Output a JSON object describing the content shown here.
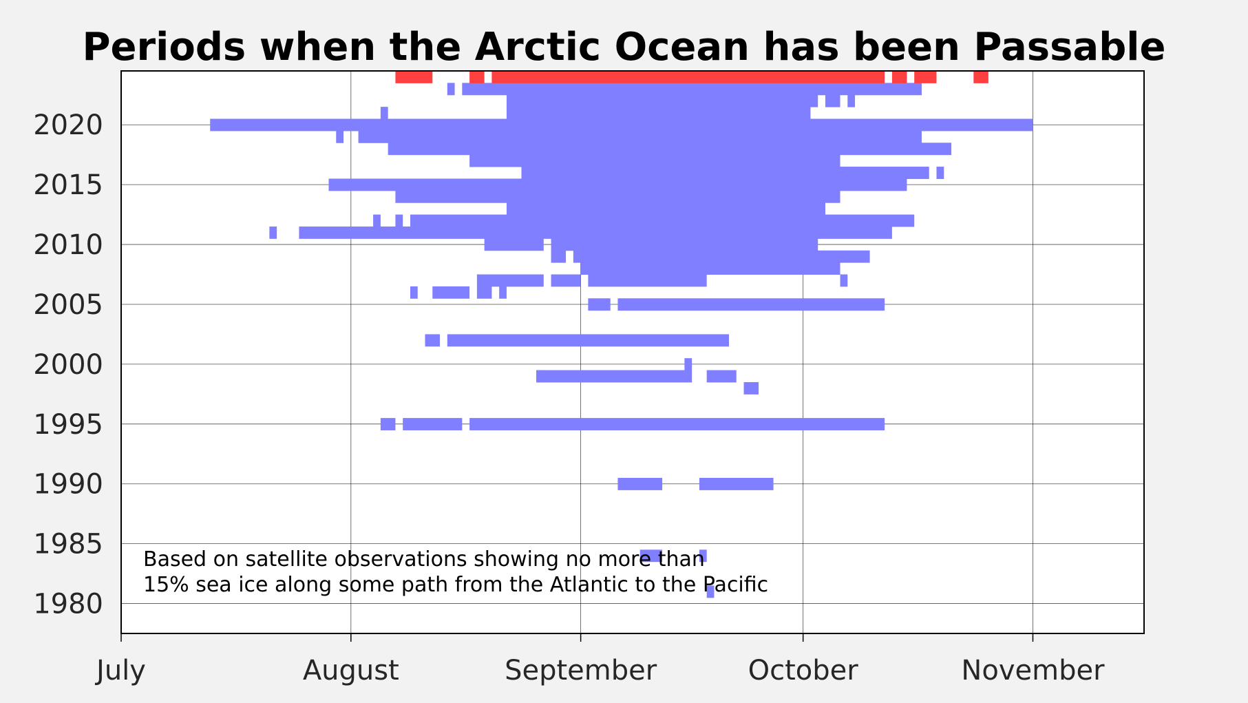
{
  "chart_data": {
    "type": "bar",
    "title": "Periods when the Arctic Ocean has been Passable",
    "xlabel": "",
    "ylabel": "",
    "x_unit": "day of year (Jul 1 = 0)",
    "x_tick_labels": [
      "July",
      "August",
      "September",
      "October",
      "November"
    ],
    "x_tick_values": [
      0,
      31,
      62,
      92,
      123
    ],
    "xlim": [
      0,
      138
    ],
    "ylim": [
      1977.5,
      2024.5
    ],
    "y_ticks": [
      1980,
      1985,
      1990,
      1995,
      2000,
      2005,
      2010,
      2015,
      2020
    ],
    "grid": true,
    "annotation": [
      "Based on satellite observations showing no more than",
      "15% sea ice along some path from the Atlantic to the Pacific"
    ],
    "colors": {
      "passable": "#7f7fff",
      "current_year": "#ff4040",
      "axis": "#000000",
      "grid": "#000000"
    },
    "series": [
      {
        "year": 1981,
        "highlight": false,
        "intervals": [
          [
            79,
            80
          ]
        ]
      },
      {
        "year": 1984,
        "highlight": false,
        "intervals": [
          [
            70,
            73
          ],
          [
            78,
            79
          ]
        ]
      },
      {
        "year": 1990,
        "highlight": false,
        "intervals": [
          [
            67,
            73
          ],
          [
            78,
            88
          ]
        ]
      },
      {
        "year": 1995,
        "highlight": false,
        "intervals": [
          [
            35,
            37
          ],
          [
            38,
            46
          ],
          [
            47,
            103
          ]
        ]
      },
      {
        "year": 1998,
        "highlight": false,
        "intervals": [
          [
            84,
            86
          ]
        ]
      },
      {
        "year": 1999,
        "highlight": false,
        "intervals": [
          [
            56,
            57
          ],
          [
            56,
            77
          ],
          [
            79,
            83
          ]
        ]
      },
      {
        "year": 2000,
        "highlight": false,
        "intervals": [
          [
            76,
            77
          ]
        ]
      },
      {
        "year": 2002,
        "highlight": false,
        "intervals": [
          [
            41,
            43
          ],
          [
            44,
            82
          ]
        ]
      },
      {
        "year": 2005,
        "highlight": false,
        "intervals": [
          [
            63,
            66
          ],
          [
            67,
            103
          ]
        ]
      },
      {
        "year": 2006,
        "highlight": false,
        "intervals": [
          [
            39,
            40
          ],
          [
            42,
            47
          ],
          [
            48,
            50
          ],
          [
            51,
            52
          ]
        ]
      },
      {
        "year": 2007,
        "highlight": false,
        "intervals": [
          [
            48,
            57
          ],
          [
            58,
            62
          ],
          [
            63,
            79
          ],
          [
            97,
            98
          ]
        ]
      },
      {
        "year": 2008,
        "highlight": false,
        "intervals": [
          [
            62,
            97
          ]
        ]
      },
      {
        "year": 2009,
        "highlight": false,
        "intervals": [
          [
            58,
            60
          ],
          [
            61,
            101
          ]
        ]
      },
      {
        "year": 2010,
        "highlight": false,
        "intervals": [
          [
            49,
            57
          ],
          [
            58,
            94
          ]
        ]
      },
      {
        "year": 2011,
        "highlight": false,
        "intervals": [
          [
            20,
            21
          ],
          [
            24,
            104
          ]
        ]
      },
      {
        "year": 2012,
        "highlight": false,
        "intervals": [
          [
            34,
            35
          ],
          [
            37,
            38
          ],
          [
            39,
            107
          ]
        ]
      },
      {
        "year": 2013,
        "highlight": false,
        "intervals": [
          [
            52,
            95
          ]
        ]
      },
      {
        "year": 2014,
        "highlight": false,
        "intervals": [
          [
            37,
            97
          ]
        ]
      },
      {
        "year": 2015,
        "highlight": false,
        "intervals": [
          [
            28,
            106
          ]
        ]
      },
      {
        "year": 2016,
        "highlight": false,
        "intervals": [
          [
            54,
            109
          ],
          [
            110,
            111
          ]
        ]
      },
      {
        "year": 2017,
        "highlight": false,
        "intervals": [
          [
            47,
            97
          ]
        ]
      },
      {
        "year": 2018,
        "highlight": false,
        "intervals": [
          [
            36,
            112
          ]
        ]
      },
      {
        "year": 2019,
        "highlight": false,
        "intervals": [
          [
            29,
            30
          ],
          [
            32,
            108
          ]
        ]
      },
      {
        "year": 2020,
        "highlight": false,
        "intervals": [
          [
            12,
            123
          ]
        ]
      },
      {
        "year": 2021,
        "highlight": false,
        "intervals": [
          [
            35,
            36
          ],
          [
            52,
            93
          ]
        ]
      },
      {
        "year": 2022,
        "highlight": false,
        "intervals": [
          [
            52,
            94
          ],
          [
            95,
            97
          ],
          [
            98,
            99
          ]
        ]
      },
      {
        "year": 2023,
        "highlight": false,
        "intervals": [
          [
            44,
            45
          ],
          [
            46,
            108
          ]
        ]
      },
      {
        "year": 2024,
        "highlight": true,
        "intervals": [
          [
            37,
            42
          ],
          [
            47,
            49
          ],
          [
            50,
            103
          ],
          [
            104,
            106
          ],
          [
            107,
            110
          ],
          [
            115,
            117
          ]
        ]
      }
    ]
  }
}
